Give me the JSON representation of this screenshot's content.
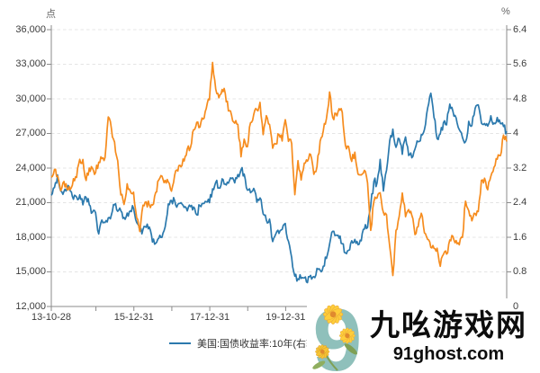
{
  "colors": {
    "background": "#ffffff",
    "grid": "#e4e4e4",
    "axis": "#8b8b8b",
    "tick_text": "#3c3c3c",
    "unit_text": "#666666",
    "blue": "#2B79AD",
    "orange": "#F68C1E"
  },
  "axes": {
    "left_unit": "点",
    "right_unit": "%",
    "left_tick_labels": [
      "36,000",
      "33,000",
      "30,000",
      "27,000",
      "24,000",
      "21,000",
      "18,000",
      "15,000",
      "12,000"
    ],
    "left_tick_values": [
      36000,
      33000,
      30000,
      27000,
      24000,
      21000,
      18000,
      15000,
      12000
    ],
    "right_tick_labels": [
      "6.4",
      "5.6",
      "4.8",
      "4",
      "3.2",
      "2.4",
      "1.6",
      "0.8",
      "0"
    ],
    "right_tick_values": [
      6.4,
      5.6,
      4.8,
      4,
      3.2,
      2.4,
      1.6,
      0.8,
      0
    ],
    "x_ticks": [
      {
        "t": 0.0,
        "label": "13-10-28"
      },
      {
        "t": 1.176,
        "label": ""
      },
      {
        "t": 2.176,
        "label": "15-12-31"
      },
      {
        "t": 3.176,
        "label": ""
      },
      {
        "t": 4.176,
        "label": "17-12-31"
      },
      {
        "t": 5.176,
        "label": ""
      },
      {
        "t": 6.176,
        "label": "19-12-31"
      }
    ]
  },
  "legend": {
    "items": [
      {
        "label": "美国:国债收益率:10年(右轴)",
        "color": "#2B79AD"
      }
    ]
  },
  "watermark": {
    "site_name": "九吆游戏网",
    "site_url": "91ghost.com",
    "logo_digit": "9"
  },
  "chart_data": {
    "type": "line",
    "title": "",
    "grid": "horizontal-dashed",
    "frequency": "monthly",
    "start_month": "2013-10",
    "end_month": "2025-10",
    "x_range": [
      "2013-10-28",
      "2025-10-28"
    ],
    "x_tick_labels": [
      "13-10-28",
      "15-12-31",
      "17-12-31",
      "19-12-31"
    ],
    "left_axis": {
      "unit": "点",
      "min": 12000,
      "max": 36000,
      "tick_step": 3000
    },
    "right_axis": {
      "unit": "%",
      "min": 0,
      "max": 6.4,
      "tick_step": 0.8
    },
    "legend_position": "bottom-center",
    "series": [
      {
        "name": "美国:国债收益率:10年(右轴)",
        "axis": "right",
        "color": "#2B79AD",
        "values": [
          2.57,
          2.75,
          3.04,
          2.67,
          2.66,
          2.73,
          2.67,
          2.48,
          2.53,
          2.58,
          2.35,
          2.52,
          2.35,
          2.18,
          2.17,
          1.68,
          2.0,
          1.94,
          2.05,
          2.12,
          2.35,
          2.2,
          2.21,
          2.06,
          2.16,
          2.21,
          2.27,
          1.94,
          1.74,
          1.78,
          1.83,
          1.84,
          1.49,
          1.46,
          1.58,
          1.6,
          1.84,
          2.37,
          2.45,
          2.45,
          2.36,
          2.4,
          2.29,
          2.21,
          2.31,
          2.3,
          2.12,
          2.33,
          2.38,
          2.42,
          2.4,
          2.72,
          2.87,
          2.74,
          2.95,
          2.83,
          2.85,
          2.96,
          2.86,
          3.05,
          3.16,
          3.06,
          2.69,
          2.63,
          2.73,
          2.41,
          2.51,
          2.14,
          2.0,
          2.02,
          1.5,
          1.68,
          1.69,
          1.78,
          1.92,
          1.51,
          1.13,
          0.7,
          0.64,
          0.65,
          0.66,
          0.55,
          0.72,
          0.69,
          0.88,
          0.84,
          0.93,
          1.11,
          1.44,
          1.74,
          1.65,
          1.58,
          1.45,
          1.24,
          1.3,
          1.52,
          1.55,
          1.43,
          1.52,
          1.79,
          1.83,
          2.32,
          2.89,
          2.85,
          3.4,
          2.67,
          3.15,
          3.83,
          4.1,
          3.68,
          3.88,
          3.52,
          3.92,
          3.49,
          3.44,
          3.64,
          3.81,
          3.97,
          4.09,
          4.59,
          4.93,
          4.37,
          3.88,
          3.99,
          4.25,
          4.2,
          4.68,
          4.51,
          4.36,
          4.09,
          3.91,
          3.81,
          4.28,
          4.18,
          4.58,
          4.66,
          4.24,
          4.23,
          4.17,
          4.41,
          4.24,
          4.37,
          4.23,
          4.16,
          4.05
        ]
      },
      {
        "name": "index-points-left-axis (legend not visible, hidden by watermark)",
        "axis": "left",
        "color": "#F68C1E",
        "values": [
          23206,
          23881,
          23306,
          22035,
          22837,
          22151,
          22134,
          23082,
          23191,
          24757,
          24742,
          22933,
          23998,
          23987,
          23605,
          24507,
          24823,
          24901,
          28433,
          27424,
          26250,
          24636,
          21671,
          20846,
          22640,
          21996,
          21914,
          19683,
          18500,
          20777,
          21067,
          20815,
          20794,
          21891,
          22977,
          23297,
          22935,
          22790,
          22001,
          23361,
          23741,
          24112,
          24615,
          25661,
          25765,
          27324,
          27970,
          27554,
          28246,
          29177,
          29919,
          33154,
          30845,
          30093,
          30808,
          30469,
          28955,
          28583,
          27889,
          27789,
          24980,
          26507,
          25846,
          27942,
          28633,
          29051,
          29699,
          26901,
          28543,
          27778,
          25725,
          26092,
          26907,
          26346,
          28190,
          26313,
          26130,
          21696,
          24644,
          22961,
          24427,
          24595,
          25177,
          23459,
          24107,
          26341,
          27231,
          28284,
          30600,
          28378,
          28725,
          29152,
          28828,
          25961,
          25879,
          24576,
          25377,
          23475,
          23398,
          23802,
          22713,
          18600,
          21089,
          21415,
          21860,
          20157,
          19954,
          17223,
          14687,
          18597,
          19781,
          21842,
          19786,
          20400,
          19895,
          18234,
          18916,
          20079,
          18382,
          17810,
          17112,
          17043,
          17047,
          15485,
          16511,
          16541,
          17763,
          18080,
          17719,
          17345,
          17989,
          21134,
          20317,
          19424,
          20060,
          20225,
          22941,
          23120,
          22119,
          23290,
          24072,
          24773,
          25078,
          26856,
          26300
        ]
      }
    ]
  }
}
